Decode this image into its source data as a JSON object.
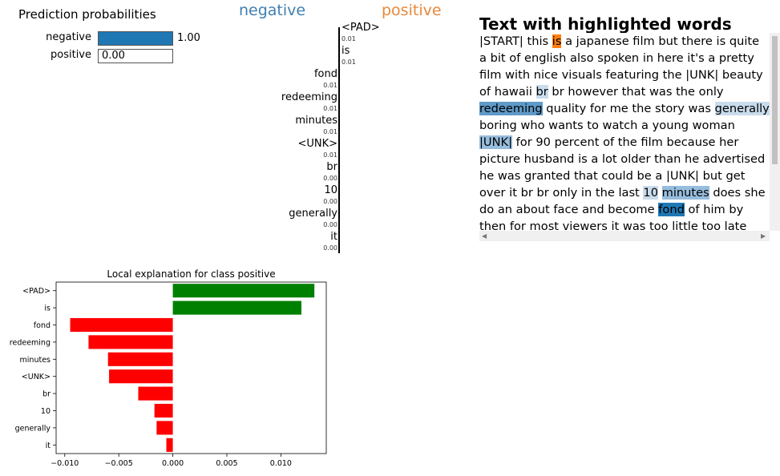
{
  "prediction": {
    "title": "Prediction probabilities",
    "rows": [
      {
        "label": "negative",
        "prob": 1.0,
        "prob_text": "1.00",
        "color": "#1f77b4"
      },
      {
        "label": "positive",
        "prob": 0.0,
        "prob_text": "0.00",
        "color": "#ff7f0e"
      }
    ]
  },
  "class_headers": {
    "negative": "negative",
    "positive": "positive"
  },
  "features": [
    {
      "name": "<PAD>",
      "value": "0.01"
    },
    {
      "name": "is",
      "value": "0.01"
    },
    {
      "name": "fond",
      "value": "0.01"
    },
    {
      "name": "redeeming",
      "value": "0.01"
    },
    {
      "name": "minutes",
      "value": "0.01"
    },
    {
      "name": "<UNK>",
      "value": "0.01"
    },
    {
      "name": "br",
      "value": "0.00"
    },
    {
      "name": "10",
      "value": "0.00"
    },
    {
      "name": "generally",
      "value": "0.00"
    },
    {
      "name": "it",
      "value": "0.00"
    }
  ],
  "text_panel": {
    "title": "Text with highlighted words",
    "tokens": [
      {
        "t": "|START| this "
      },
      {
        "t": "is",
        "hl": "pos1"
      },
      {
        "t": " a japanese film but there is quite a bit of english also spoken in here it's a pretty film with nice visuals featuring the |UNK| beauty of hawaii "
      },
      {
        "t": "br",
        "hl": "neg4"
      },
      {
        "t": " br however that was the only "
      },
      {
        "t": "redeeming",
        "hl": "neg2"
      },
      {
        "t": " quality for me the story was "
      },
      {
        "t": "generally",
        "hl": "neg4"
      },
      {
        "t": " boring who wants to watch a young woman "
      },
      {
        "t": "|UNK|",
        "hl": "neg3"
      },
      {
        "t": " for 90 percent of the film because her picture husband is a lot older than he advertised he was granted that could be a |UNK| but get over it br br only in the last "
      },
      {
        "t": "10",
        "hl": "neg4"
      },
      {
        "t": " "
      },
      {
        "t": "minutes",
        "hl": "neg3"
      },
      {
        "t": " does she do an about face and become "
      },
      {
        "t": "fond",
        "hl": "neg1"
      },
      {
        "t": " of him by then for most viewers it was too little too late we'd fallen asleep by then |PAD| |PAD| |PAD| |PAD| |PAD| |PAD| |PAD| |PAD| |PAD|"
      }
    ]
  },
  "chart_data": {
    "type": "bar",
    "orientation": "horizontal",
    "title": "Local explanation for class positive",
    "categories": [
      "<PAD>",
      "is",
      "fond",
      "redeeming",
      "minutes",
      "<UNK>",
      "br",
      "10",
      "generally",
      "it"
    ],
    "values": [
      0.0131,
      0.0119,
      -0.0095,
      -0.0078,
      -0.006,
      -0.0059,
      -0.0032,
      -0.0017,
      -0.0015,
      -0.0006
    ],
    "positive_color": "#008000",
    "negative_color": "#ff0000",
    "xlim": [
      -0.0108,
      0.0142
    ],
    "xticks": [
      -0.01,
      -0.005,
      0.0,
      0.005,
      0.01
    ],
    "xtick_labels": [
      "−0.010",
      "−0.005",
      "0.000",
      "0.005",
      "0.010"
    ]
  }
}
